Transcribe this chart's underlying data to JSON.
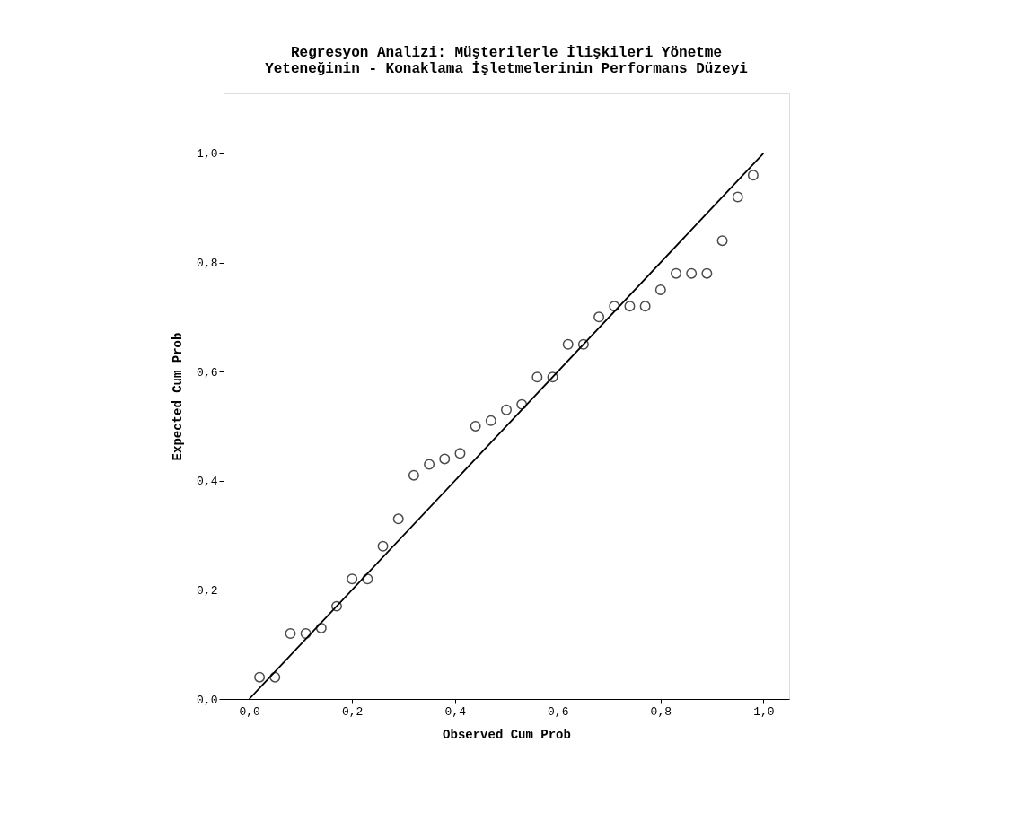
{
  "chart_data": {
    "type": "scatter",
    "title": "Regresyon Analizi: Müşterilerle İlişkileri Yönetme Yeteneğinin - Konaklama İşletmelerinin Performans Düzeyi",
    "xlabel": "Observed Cum Prob",
    "ylabel": "Expected Cum Prob",
    "x": [
      0.02,
      0.05,
      0.08,
      0.11,
      0.14,
      0.17,
      0.2,
      0.23,
      0.26,
      0.29,
      0.32,
      0.35,
      0.38,
      0.41,
      0.44,
      0.47,
      0.5,
      0.53,
      0.56,
      0.59,
      0.62,
      0.65,
      0.68,
      0.71,
      0.74,
      0.77,
      0.8,
      0.83,
      0.86,
      0.89,
      0.92,
      0.95,
      0.98
    ],
    "series": [
      {
        "color": "#000000",
        "marker": "circle",
        "values": [
          0.04,
          0.04,
          0.12,
          0.12,
          0.13,
          0.17,
          0.22,
          0.22,
          0.28,
          0.33,
          0.41,
          0.43,
          0.44,
          0.45,
          0.5,
          0.51,
          0.53,
          0.54,
          0.59,
          0.59,
          0.65,
          0.65,
          0.7,
          0.72,
          0.72,
          0.72,
          0.75,
          0.78,
          0.78,
          0.78,
          0.84,
          0.92,
          0.96
        ]
      },
      {
        "type": "line",
        "color": "#000000",
        "x": [
          0,
          1
        ],
        "values": [
          0,
          1
        ],
        "line_style": "solid"
      }
    ],
    "xlim": [
      -0.05,
      1.05
    ],
    "ylim": [
      0,
      1.11
    ],
    "xticks": [
      {
        "value": 0,
        "label": "0,0"
      },
      {
        "value": 0.2,
        "label": "0,2"
      },
      {
        "value": 0.4,
        "label": "0,4"
      },
      {
        "value": 0.6,
        "label": "0,6"
      },
      {
        "value": 0.8,
        "label": "0,8"
      },
      {
        "value": 1,
        "label": "1,0"
      }
    ],
    "yticks": [
      {
        "value": 0,
        "label": "0,0"
      },
      {
        "value": 0.2,
        "label": "0,2"
      },
      {
        "value": 0.4,
        "label": "0,4"
      },
      {
        "value": 0.6,
        "label": "0,6"
      },
      {
        "value": 0.8,
        "label": "0,8"
      },
      {
        "value": 1,
        "label": "1,0"
      }
    ],
    "grid": false
  }
}
